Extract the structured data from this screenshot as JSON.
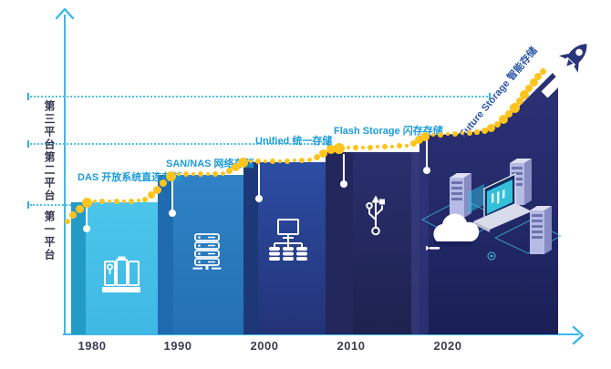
{
  "diagram": {
    "subject": "storage technology evolution timeline",
    "colors": {
      "axis_blue": "#3DB7ED",
      "divider_blue": "#4FC0EA",
      "era_label_blue": "#1B9CD8",
      "future_label_blue": "#2C56A8",
      "curve_dot_yellow": "#FFC41E",
      "year_text": "#3C3C52",
      "platform_text": "#34344E",
      "bar_colors": [
        "#48C1E9",
        "#2E80C4",
        "#2B4DA4",
        "#2A2F6E",
        "#232968"
      ]
    }
  },
  "platforms": [
    {
      "label": "第三平台"
    },
    {
      "label": "第二平台"
    },
    {
      "label": "第一平台"
    }
  ],
  "eras": [
    {
      "year": "1980",
      "label": "DAS 开放系统直连存储",
      "icon": "storage-array-icon"
    },
    {
      "year": "1990",
      "label": "SAN/NAS 网络存储",
      "icon": "server-rack-icon"
    },
    {
      "year": "2000",
      "label": "Unified 统一存储",
      "icon": "network-storage-icon"
    },
    {
      "year": "2010",
      "label": "Flash Storage 闪存存储",
      "icon": "usb-icon"
    },
    {
      "year": "2020",
      "label": "Future Storage 智能存储",
      "icon": "cloud-datacenter-illustration"
    }
  ]
}
